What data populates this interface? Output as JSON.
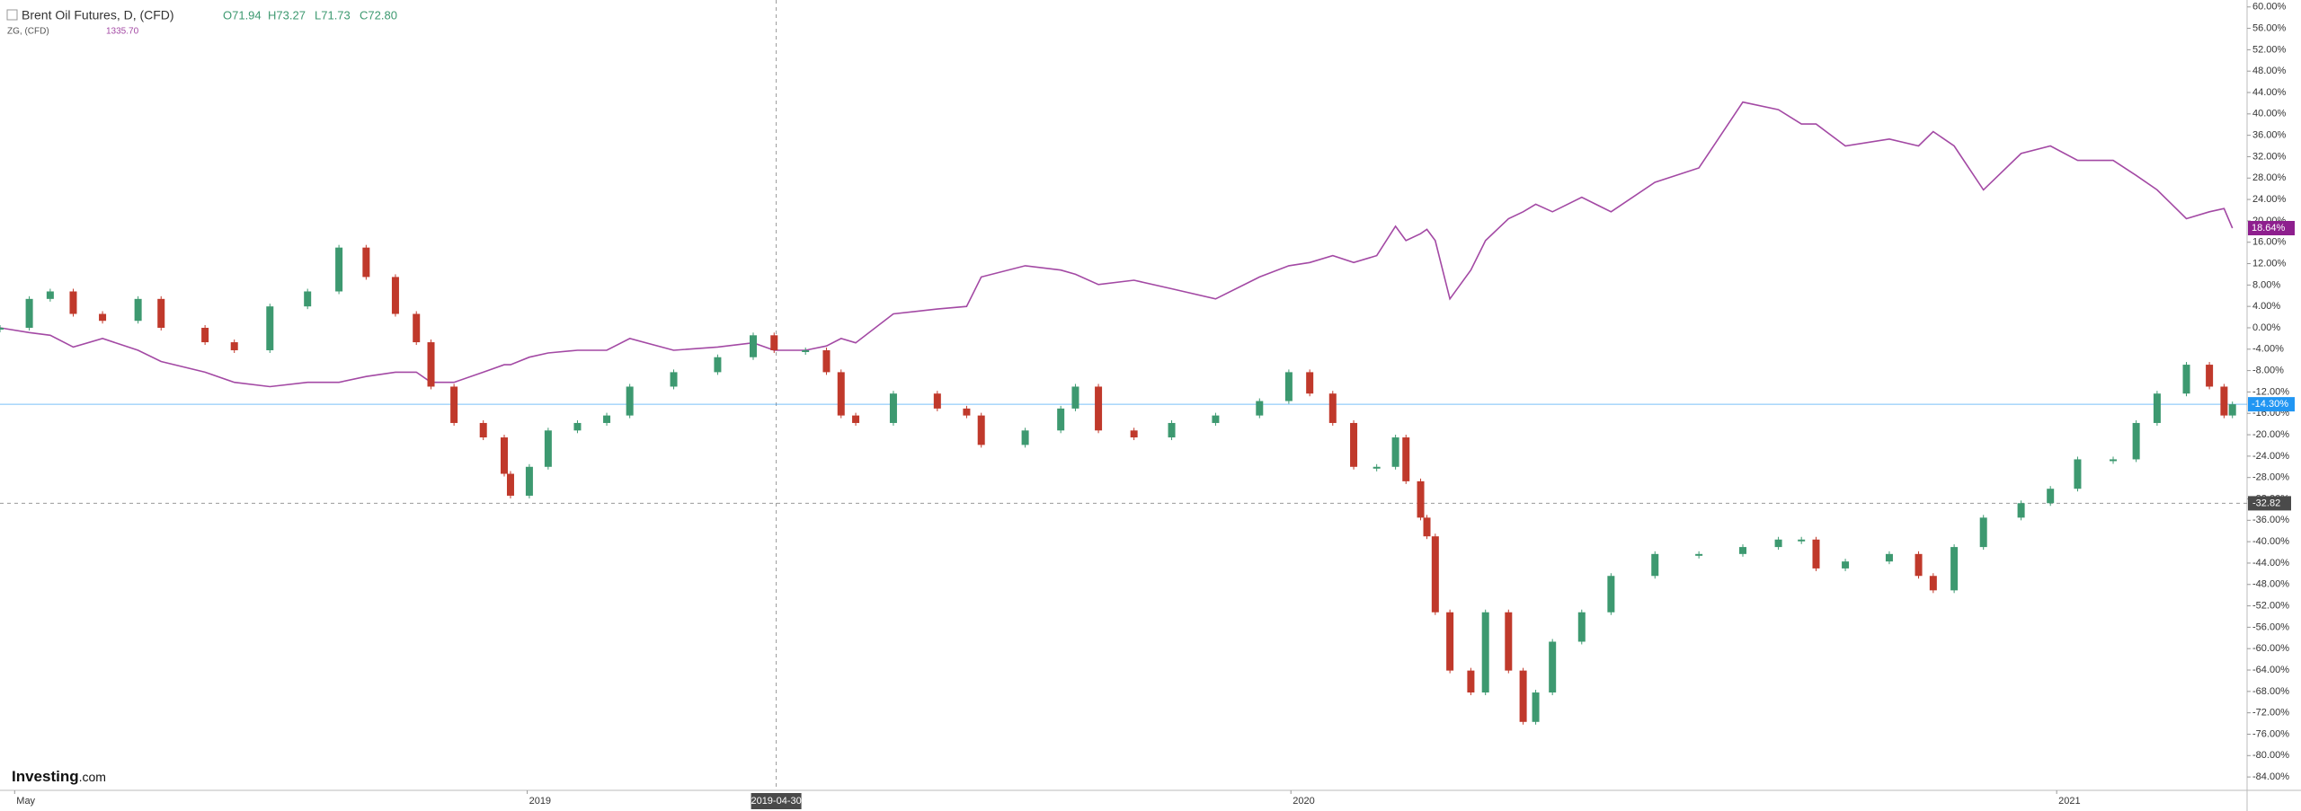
{
  "chart_data": {
    "type": "candlestick-compare",
    "series": [
      {
        "name": "Brent Oil Futures, D, (CFD)",
        "color": "#3d9970",
        "down_color": "#c0392b",
        "ohlc": [
          71.94,
          73.27,
          71.73,
          72.8
        ],
        "ohlc_labels": [
          "O71.94",
          "H73.27",
          "L71.73",
          "C72.80"
        ],
        "values": [
          0,
          5.4,
          6.8,
          2.6,
          1.3,
          5.4,
          0,
          -2.7,
          -4.2,
          4.0,
          6.8,
          15.0,
          9.5,
          2.6,
          -2.7,
          -11.0,
          -17.8,
          -20.5,
          -27.3,
          -31.4,
          -26.0,
          -19.2,
          -17.8,
          -16.4,
          -11.0,
          -8.3,
          -5.5,
          -1.4,
          -4.2,
          -4.2,
          -8.3,
          -16.4,
          -17.8,
          -12.3,
          -15.1,
          -16.4,
          -21.9,
          -19.2,
          -15.1,
          -11.0,
          -19.2,
          -20.5,
          -17.8,
          -16.4,
          -13.7,
          -8.3,
          -12.3,
          -17.8,
          -26.0,
          -26.0,
          -20.5,
          -28.7,
          -35.5,
          -39.0,
          -53.2,
          -64.1,
          -68.2,
          -53.2,
          -64.1,
          -73.7,
          -68.2,
          -58.7,
          -53.2,
          -46.4,
          -42.3,
          -42.3,
          -41.0,
          -39.6,
          -39.6,
          -45.0,
          -43.7,
          -42.3,
          -46.4,
          -49.1,
          -41.0,
          -35.5,
          -32.8,
          -30.1,
          -24.6,
          -24.6,
          -17.8,
          -12.3,
          -6.9,
          -11.0,
          -16.4,
          -14.3
        ]
      },
      {
        "name": "ZG, (CFD)",
        "color": "#a349a4",
        "last": 1335.7,
        "last_label": "1335.70",
        "values": [
          0,
          -0.9,
          -1.4,
          -3.6,
          -2.0,
          -4.2,
          -6.3,
          -8.3,
          -10.2,
          -11.0,
          -10.2,
          -10.2,
          -9.1,
          -8.3,
          -8.3,
          -10.2,
          -10.2,
          -8.3,
          -6.9,
          -6.9,
          -5.5,
          -4.7,
          -4.2,
          -4.2,
          -2.0,
          -4.2,
          -3.6,
          -2.8,
          -4.2,
          -4.2,
          -3.4,
          -2.0,
          -2.8,
          2.6,
          3.5,
          4.0,
          9.5,
          11.6,
          10.8,
          10.0,
          8.1,
          8.9,
          7.3,
          5.4,
          9.5,
          11.6,
          12.2,
          13.5,
          12.2,
          13.5,
          19.0,
          16.3,
          17.6,
          18.4,
          16.3,
          5.4,
          10.8,
          16.3,
          20.4,
          21.7,
          23.1,
          21.7,
          24.4,
          21.7,
          27.2,
          29.9,
          42.2,
          40.8,
          38.1,
          38.1,
          34.0,
          35.3,
          34.0,
          36.7,
          34.0,
          25.8,
          32.6,
          34.0,
          31.3,
          31.3,
          28.5,
          25.8,
          20.4,
          21.7,
          22.3,
          18.64
        ]
      }
    ],
    "x": [
      "2018-04-24",
      "2018-05-08",
      "2018-05-18",
      "2018-05-29",
      "2018-06-12",
      "2018-06-29",
      "2018-07-10",
      "2018-07-31",
      "2018-08-14",
      "2018-08-31",
      "2018-09-18",
      "2018-10-03",
      "2018-10-16",
      "2018-10-30",
      "2018-11-09",
      "2018-11-16",
      "2018-11-27",
      "2018-12-11",
      "2018-12-21",
      "2018-12-24",
      "2019-01-02",
      "2019-01-11",
      "2019-01-25",
      "2019-02-08",
      "2019-02-19",
      "2019-03-12",
      "2019-04-02",
      "2019-04-19",
      "2019-04-29",
      "2019-05-14",
      "2019-05-24",
      "2019-05-31",
      "2019-06-07",
      "2019-06-25",
      "2019-07-16",
      "2019-07-30",
      "2019-08-06",
      "2019-08-27",
      "2019-09-13",
      "2019-09-20",
      "2019-10-01",
      "2019-10-18",
      "2019-11-05",
      "2019-11-26",
      "2019-12-17",
      "2019-12-31",
      "2020-01-10",
      "2020-01-21",
      "2020-01-31",
      "2020-02-11",
      "2020-02-20",
      "2020-02-25",
      "2020-03-03",
      "2020-03-06",
      "2020-03-10",
      "2020-03-17",
      "2020-03-27",
      "2020-04-03",
      "2020-04-14",
      "2020-04-21",
      "2020-04-27",
      "2020-05-05",
      "2020-05-19",
      "2020-06-02",
      "2020-06-23",
      "2020-07-14",
      "2020-08-04",
      "2020-08-21",
      "2020-09-01",
      "2020-09-08",
      "2020-09-22",
      "2020-10-13",
      "2020-10-27",
      "2020-11-03",
      "2020-11-13",
      "2020-11-27",
      "2020-12-15",
      "2020-12-29",
      "2021-01-11",
      "2021-01-28",
      "2021-02-08",
      "2021-02-18",
      "2021-03-04",
      "2021-03-15",
      "2021-03-22",
      "2021-03-26"
    ],
    "xlim": [
      "2018-04-24",
      "2021-04-02"
    ],
    "xticks": [
      {
        "value": "2018-05-01",
        "label": "May"
      },
      {
        "value": "2019-01-01",
        "label": "2019"
      },
      {
        "value": "2020-01-01",
        "label": "2020"
      },
      {
        "value": "2021-01-01",
        "label": "2021"
      }
    ],
    "ylim": [
      -86.5,
      61.3
    ],
    "yticks": [
      {
        "value": 60,
        "label": "60.00%"
      },
      {
        "value": 56,
        "label": "56.00%"
      },
      {
        "value": 52,
        "label": "52.00%"
      },
      {
        "value": 48,
        "label": "48.00%"
      },
      {
        "value": 44,
        "label": "44.00%"
      },
      {
        "value": 40,
        "label": "40.00%"
      },
      {
        "value": 36,
        "label": "36.00%"
      },
      {
        "value": 32,
        "label": "32.00%"
      },
      {
        "value": 28,
        "label": "28.00%"
      },
      {
        "value": 24,
        "label": "24.00%"
      },
      {
        "value": 20,
        "label": "20.00%"
      },
      {
        "value": 16,
        "label": "16.00%"
      },
      {
        "value": 12,
        "label": "12.00%"
      },
      {
        "value": 8,
        "label": "8.00%"
      },
      {
        "value": 4,
        "label": "4.00%"
      },
      {
        "value": 0,
        "label": "0.00%"
      },
      {
        "value": -4,
        "label": "-4.00%"
      },
      {
        "value": -8,
        "label": "-8.00%"
      },
      {
        "value": -12,
        "label": "-12.00%"
      },
      {
        "value": -16,
        "label": "-16.00%"
      },
      {
        "value": -20,
        "label": "-20.00%"
      },
      {
        "value": -24,
        "label": "-24.00%"
      },
      {
        "value": -28,
        "label": "-28.00%"
      },
      {
        "value": -32,
        "label": "-32.00%"
      },
      {
        "value": -36,
        "label": "-36.00%"
      },
      {
        "value": -40,
        "label": "-40.00%"
      },
      {
        "value": -44,
        "label": "-44.00%"
      },
      {
        "value": -48,
        "label": "-48.00%"
      },
      {
        "value": -52,
        "label": "-52.00%"
      },
      {
        "value": -56,
        "label": "-56.00%"
      },
      {
        "value": -60,
        "label": "-60.00%"
      },
      {
        "value": -64,
        "label": "-64.00%"
      },
      {
        "value": -68,
        "label": "-68.00%"
      },
      {
        "value": -72,
        "label": "-72.00%"
      },
      {
        "value": -76,
        "label": "-76.00%"
      },
      {
        "value": -80,
        "label": "-80.00%"
      },
      {
        "value": -84,
        "label": "-84.00%"
      }
    ],
    "markers": [
      {
        "value": 18.64,
        "label": "18.64%",
        "color": "#8e1f8e"
      },
      {
        "value": -14.3,
        "label": "-14.30%",
        "color": "#2196f3"
      }
    ],
    "crosshair": {
      "x": "2019-04-30",
      "y": -32.82,
      "y_label": "-32.82"
    }
  },
  "logo": {
    "brand": "Investing",
    "suffix": ".com"
  }
}
